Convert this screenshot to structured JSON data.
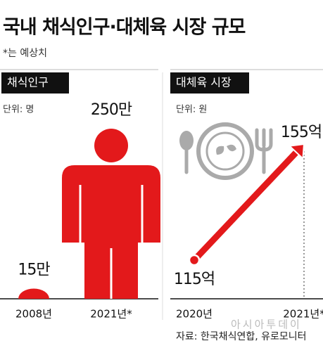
{
  "title": "국내 채식인구·대체육 시장 규모",
  "subtitle": "*는 예상치",
  "source": "자료: 한국채식연합, 유로모니터",
  "watermark": "아시아투데이",
  "chart_data": [
    {
      "type": "bar",
      "title": "채식인구",
      "unit": "단위: 명",
      "categories": [
        "2008년",
        "2021년*"
      ],
      "values": [
        15,
        250
      ],
      "value_labels": [
        "15만",
        "250만"
      ],
      "color": "#e3191b"
    },
    {
      "type": "line",
      "title": "대체육 시장",
      "unit": "단위: 원",
      "categories": [
        "2020년",
        "2021년*"
      ],
      "values": [
        115,
        155
      ],
      "value_labels": [
        "115억",
        "155억"
      ],
      "color": "#e3191b"
    }
  ]
}
